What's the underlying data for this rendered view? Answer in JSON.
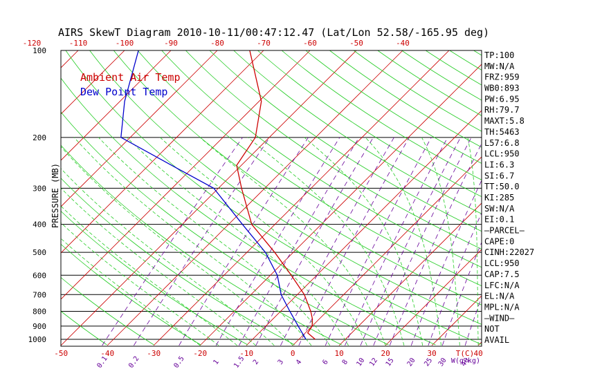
{
  "chart_data": {
    "type": "line",
    "title": "AIRS SkewT Diagram 2010-10-11/00:47:12.47 (Lat/Lon 52.58/-165.95 deg)",
    "ylabel": "PRESSURE (MB)",
    "bottom_axis_unit": "T(C)",
    "mixing_ratio_unit": "W(g/kg)",
    "pressure_ticks": [
      100,
      200,
      300,
      400,
      500,
      600,
      700,
      800,
      900,
      1000
    ],
    "pressure_range": [
      1000,
      100
    ],
    "top_temp_ticks": [
      -120,
      -110,
      -100,
      -90,
      -80,
      -70,
      -60,
      -50,
      -40
    ],
    "bottom_temp_ticks": [
      -50,
      -40,
      -30,
      -20,
      -10,
      0,
      10,
      20,
      30,
      40
    ],
    "mixing_ratio_labels": [
      "0.1",
      "0.2",
      "0.5",
      "1",
      "1.5",
      "2",
      "3",
      "4",
      "6",
      "8",
      "10",
      "12",
      "15",
      "20",
      "25",
      "30",
      "40"
    ],
    "legend": [
      "Ambient Air Temp",
      "Dew Point Temp"
    ],
    "series": [
      {
        "name": "Ambient Air Temp",
        "color": "#cc0000",
        "points": [
          {
            "p": 1000,
            "t": 3.5
          },
          {
            "p": 950,
            "t": 0.5
          },
          {
            "p": 900,
            "t": 0.0
          },
          {
            "p": 850,
            "t": -1.5
          },
          {
            "p": 800,
            "t": -3.5
          },
          {
            "p": 700,
            "t": -8.5
          },
          {
            "p": 600,
            "t": -15.5
          },
          {
            "p": 500,
            "t": -24.0
          },
          {
            "p": 400,
            "t": -35.0
          },
          {
            "p": 300,
            "t": -45.0
          },
          {
            "p": 250,
            "t": -51.0
          },
          {
            "p": 200,
            "t": -53.0
          },
          {
            "p": 150,
            "t": -59.5
          },
          {
            "p": 100,
            "t": -73.0
          }
        ]
      },
      {
        "name": "Dew Point Temp",
        "color": "#0000cc",
        "points": [
          {
            "p": 1000,
            "t": 1.5
          },
          {
            "p": 900,
            "t": -3.0
          },
          {
            "p": 800,
            "t": -8.0
          },
          {
            "p": 700,
            "t": -13.5
          },
          {
            "p": 600,
            "t": -18.5
          },
          {
            "p": 500,
            "t": -26.0
          },
          {
            "p": 400,
            "t": -37.0
          },
          {
            "p": 300,
            "t": -51.0
          },
          {
            "p": 250,
            "t": -65.0
          },
          {
            "p": 200,
            "t": -82.0
          },
          {
            "p": 150,
            "t": -89.0
          },
          {
            "p": 100,
            "t": -97.0
          }
        ]
      }
    ],
    "indices": [
      "TP:100",
      "MW:N/A",
      "FRZ:959",
      "WB0:893",
      "PW:6.95",
      "RH:79.7",
      "MAXT:5.8",
      "TH:5463",
      "L57:6.8",
      "LCL:950",
      "LI:6.3",
      "SI:6.7",
      "TT:50.0",
      "KI:285",
      "SW:N/A",
      "EI:0.1",
      "–PARCEL–",
      "CAPE:0",
      "CINH:22027",
      "LCL:950",
      "CAP:7.5",
      "LFC:N/A",
      "EL:N/A",
      "MPL:N/A",
      "–WIND–",
      "NOT",
      "AVAIL"
    ],
    "colors": {
      "isotherm": "#cc0000",
      "dry_adiabat": "#22cc22",
      "moist_adiabat": "#22cc22",
      "mixing_ratio": "#660099",
      "isobar": "#000000",
      "temp": "#cc0000",
      "dewpoint": "#0000cc"
    }
  }
}
